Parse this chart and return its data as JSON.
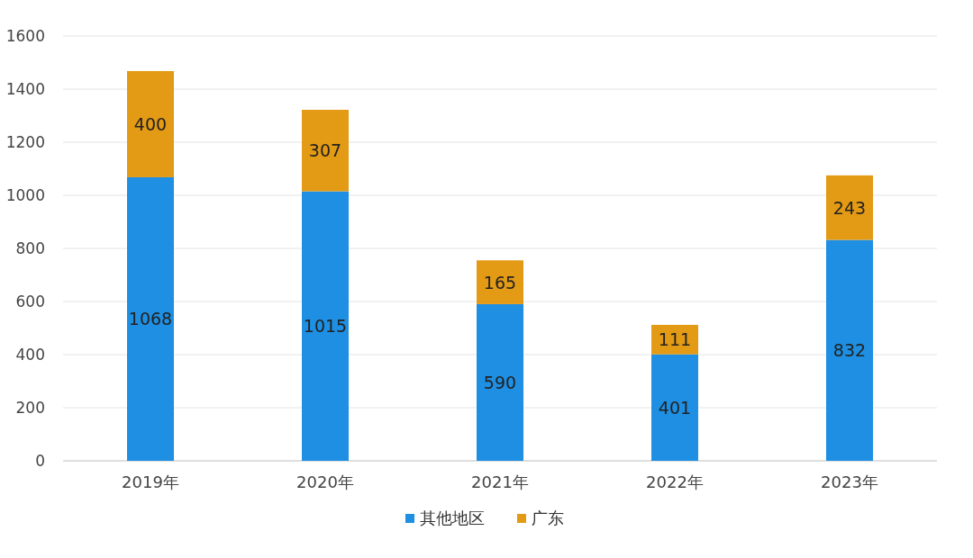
{
  "chart_data": {
    "type": "bar",
    "stacked": true,
    "categories": [
      "2019年",
      "2020年",
      "2021年",
      "2022年",
      "2023年"
    ],
    "series": [
      {
        "name": "其他地区",
        "color": "#1e8fe3",
        "values": [
          1068,
          1015,
          590,
          401,
          832
        ]
      },
      {
        "name": "广东",
        "color": "#e39a14",
        "values": [
          400,
          307,
          165,
          111,
          243
        ]
      }
    ],
    "ylim": [
      0,
      1600
    ],
    "yticks": [
      0,
      200,
      400,
      600,
      800,
      1000,
      1200,
      1400,
      1600
    ],
    "grid": "y",
    "legend": "bottom",
    "data_labels": true
  }
}
